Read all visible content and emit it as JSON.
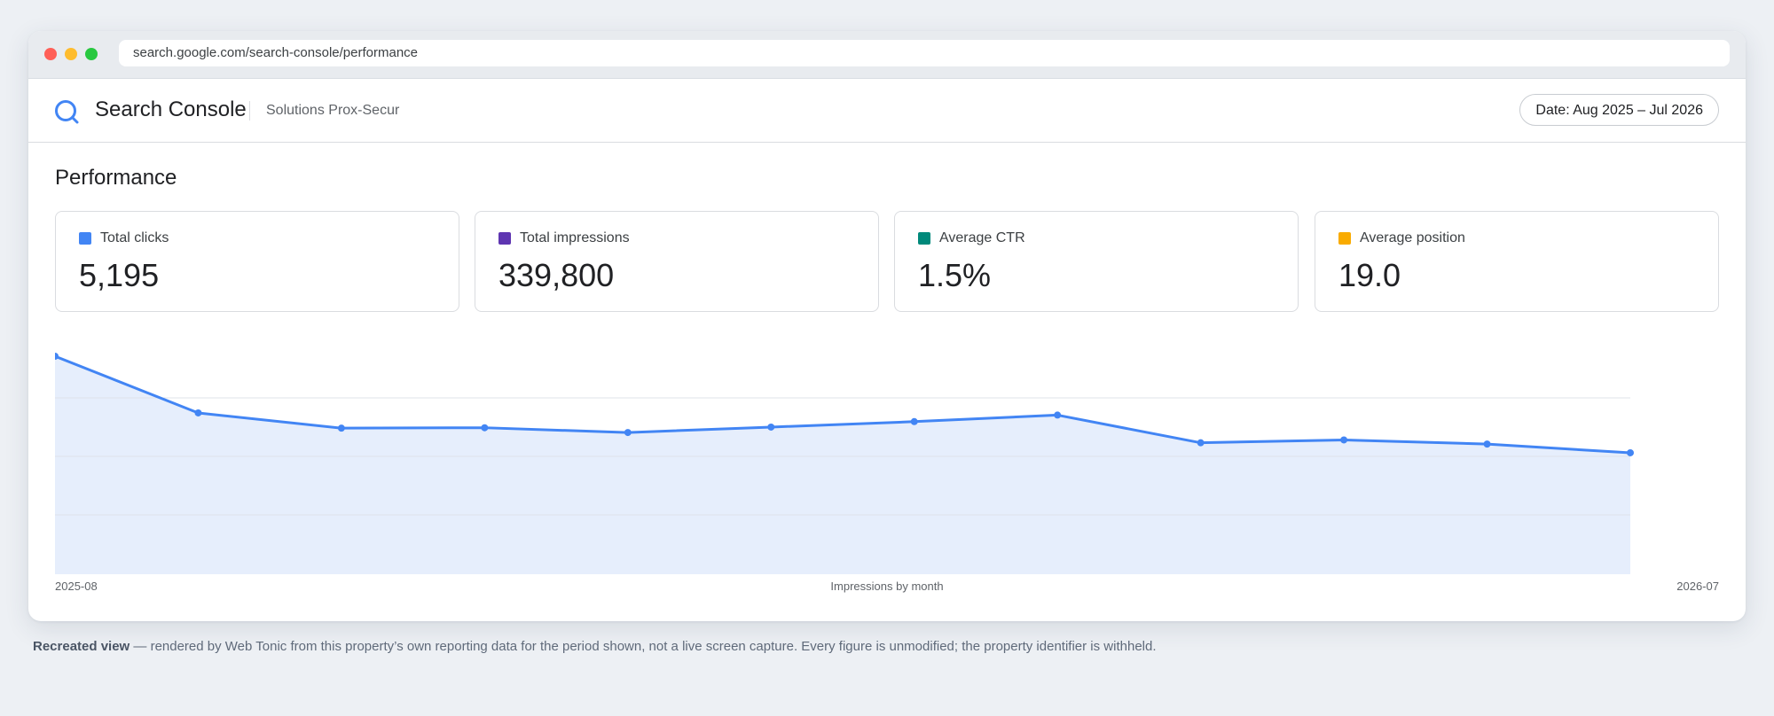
{
  "browser": {
    "url": "search.google.com/search-console/performance"
  },
  "app": {
    "product_name": "Search Console",
    "property_name": "Solutions Prox-Secur",
    "date_range_label": "Date: Aug 2025 – Jul 2026"
  },
  "page": {
    "title": "Performance"
  },
  "metrics": [
    {
      "label": "Total clicks",
      "value": "5,195",
      "color": "#4285f4"
    },
    {
      "label": "Total impressions",
      "value": "339,800",
      "color": "#5e35b1"
    },
    {
      "label": "Average CTR",
      "value": "1.5%",
      "color": "#00897b"
    },
    {
      "label": "Average position",
      "value": "19.0",
      "color": "#f9ab00"
    }
  ],
  "chart_data": {
    "type": "area",
    "caption": "Impressions by month",
    "x": [
      "2025-08",
      "2025-09",
      "2025-10",
      "2025-11",
      "2025-12",
      "2026-01",
      "2026-02",
      "2026-03",
      "2026-04",
      "2026-05",
      "2026-06",
      "2026-07"
    ],
    "x_tick_labels": [
      "2025-08",
      "2026-07"
    ],
    "values": [
      100,
      74,
      67,
      67.2,
      65,
      67.5,
      70,
      73,
      60.3,
      61.6,
      59.7,
      55.7
    ],
    "ylim": [
      0,
      120
    ],
    "gridlines": [
      20,
      40,
      60
    ],
    "line_color": "#4285f4",
    "fill_color": "#e6eefc",
    "grid_color": "#dfe3ea"
  },
  "footnote": {
    "bold": "Recreated view",
    "text": " — rendered by Web Tonic from this property’s own reporting data for the period shown, not a live screen capture. Every figure is unmodified; the property identifier is withheld."
  }
}
